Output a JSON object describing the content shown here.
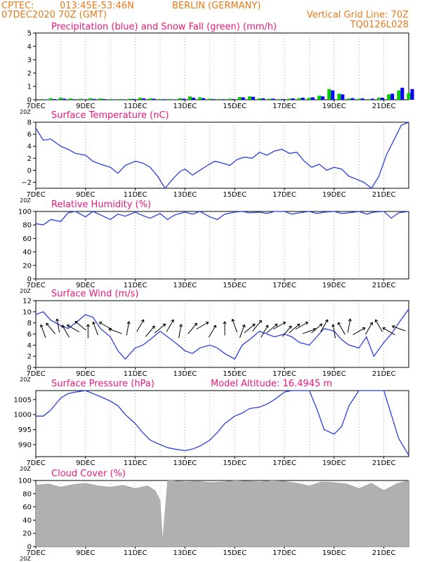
{
  "header": {
    "source": "CPTEC:",
    "coords": "013:45E-53:46N",
    "location": "BERLIN (GERMANY)",
    "run": "07DEC2020 70Z (GMT)",
    "grid_note": "Vertical Grid Line: 70Z",
    "code": "TQ0126L028",
    "hour_label": "20Z"
  },
  "x_dates": [
    "7DEC",
    "9DEC",
    "11DEC",
    "13DEC",
    "15DEC",
    "17DEC",
    "19DEC",
    "21DEC"
  ],
  "colors": {
    "precip": "#0000ff",
    "snow": "#00cc00",
    "line": "#2a3fe0",
    "cloud": "#b0b0b0",
    "header_orange": "#e8791a",
    "title_pink": "#e8197a"
  },
  "chart_data": [
    {
      "type": "bar",
      "title": "Precipitation (blue) and Snow Fall (green) (mm/h)",
      "ylim": [
        0,
        5
      ],
      "yticks": [
        "0",
        "1",
        "2",
        "3",
        "4",
        "5"
      ],
      "x_days": [
        7.3,
        7.6,
        8.0,
        8.4,
        8.8,
        9.2,
        9.6,
        10.0,
        10.4,
        10.8,
        11.2,
        11.6,
        12.0,
        12.4,
        12.8,
        13.2,
        13.6,
        14.0,
        14.4,
        14.8,
        15.2,
        15.6,
        16.0,
        16.4,
        16.8,
        17.2,
        17.6,
        18.0,
        18.4,
        18.8,
        19.2,
        19.6,
        20.0,
        20.4,
        20.8,
        21.2,
        21.6,
        22.0
      ],
      "series": [
        {
          "name": "Precipitation",
          "values": [
            0.02,
            0.05,
            0.08,
            0.04,
            0.03,
            0.06,
            0.05,
            0.02,
            0.03,
            0.05,
            0.1,
            0.08,
            0.04,
            0.03,
            0.08,
            0.15,
            0.12,
            0.05,
            0.04,
            0.05,
            0.18,
            0.22,
            0.1,
            0.08,
            0.05,
            0.1,
            0.15,
            0.18,
            0.25,
            0.7,
            0.4,
            0.12,
            0.1,
            0.08,
            0.15,
            0.45,
            0.9,
            0.8
          ]
        },
        {
          "name": "Snow Fall",
          "values": [
            0.05,
            0.12,
            0.15,
            0.1,
            0.08,
            0.12,
            0.1,
            0.05,
            0.05,
            0.08,
            0.15,
            0.1,
            0.05,
            0.05,
            0.12,
            0.25,
            0.18,
            0.08,
            0.05,
            0.08,
            0.2,
            0.25,
            0.1,
            0.08,
            0.05,
            0.08,
            0.12,
            0.15,
            0.3,
            0.8,
            0.45,
            0.1,
            0.08,
            0.05,
            0.15,
            0.4,
            0.7,
            0.5
          ]
        }
      ]
    },
    {
      "type": "line",
      "title": "Surface Temperature (nC)",
      "ylim": [
        -3,
        8
      ],
      "yticks": [
        "−2",
        "0",
        "2",
        "4",
        "6",
        "8"
      ],
      "x_days": [
        7.0,
        7.3,
        7.6,
        8.0,
        8.3,
        8.6,
        9.0,
        9.3,
        9.6,
        10.0,
        10.3,
        10.6,
        11.0,
        11.3,
        11.6,
        11.9,
        12.2,
        12.5,
        12.8,
        13.0,
        13.3,
        13.6,
        13.9,
        14.2,
        14.5,
        14.8,
        15.1,
        15.4,
        15.7,
        16.0,
        16.3,
        16.6,
        16.9,
        17.2,
        17.5,
        17.8,
        18.1,
        18.4,
        18.7,
        19.0,
        19.3,
        19.6,
        19.9,
        20.2,
        20.5,
        20.8,
        21.1,
        21.4,
        21.7,
        22.0
      ],
      "values": [
        7.0,
        5.0,
        5.2,
        4.0,
        3.5,
        2.8,
        2.5,
        1.5,
        1.0,
        0.5,
        -0.5,
        0.8,
        1.5,
        1.2,
        0.5,
        -1.0,
        -3.0,
        -1.5,
        -0.2,
        0.2,
        -0.8,
        0.0,
        0.8,
        1.5,
        1.2,
        0.8,
        1.8,
        2.2,
        2.0,
        3.0,
        2.5,
        3.2,
        3.5,
        2.8,
        3.0,
        1.5,
        0.5,
        1.0,
        0.0,
        0.5,
        0.2,
        -1.0,
        -1.5,
        -2.0,
        -3.0,
        -1.0,
        2.5,
        5.0,
        7.5,
        8.0
      ]
    },
    {
      "type": "line",
      "title": "Relative Humidity (%)",
      "ylim": [
        0,
        100
      ],
      "yticks": [
        "0",
        "20",
        "40",
        "60",
        "80",
        "100"
      ],
      "x_days": [
        7.0,
        7.3,
        7.6,
        8.0,
        8.3,
        8.6,
        9.0,
        9.3,
        9.6,
        10.0,
        10.3,
        10.6,
        11.0,
        11.3,
        11.6,
        12.0,
        12.3,
        12.6,
        13.0,
        13.3,
        13.6,
        14.0,
        14.3,
        14.6,
        15.0,
        15.3,
        15.6,
        16.0,
        16.3,
        16.6,
        17.0,
        17.3,
        17.6,
        18.0,
        18.3,
        18.6,
        19.0,
        19.3,
        19.6,
        20.0,
        20.3,
        20.6,
        21.0,
        21.3,
        21.6,
        22.0
      ],
      "values": [
        82,
        80,
        88,
        85,
        98,
        100,
        92,
        100,
        95,
        88,
        96,
        93,
        99,
        94,
        90,
        97,
        88,
        95,
        99,
        96,
        100,
        92,
        88,
        96,
        99,
        100,
        98,
        99,
        97,
        100,
        100,
        96,
        98,
        100,
        97,
        99,
        100,
        97,
        98,
        100,
        96,
        99,
        100,
        90,
        98,
        100
      ]
    },
    {
      "type": "line",
      "title": "Surface Wind (m/s)",
      "ylim": [
        0,
        12
      ],
      "yticks": [
        "0",
        "2",
        "4",
        "6",
        "8",
        "10",
        "12"
      ],
      "x_days": [
        7.0,
        7.3,
        7.6,
        8.0,
        8.3,
        8.6,
        9.0,
        9.3,
        9.6,
        10.0,
        10.3,
        10.6,
        11.0,
        11.3,
        11.6,
        12.0,
        12.3,
        12.6,
        13.0,
        13.3,
        13.6,
        14.0,
        14.3,
        14.6,
        15.0,
        15.3,
        15.6,
        16.0,
        16.3,
        16.6,
        17.0,
        17.3,
        17.6,
        18.0,
        18.3,
        18.6,
        19.0,
        19.3,
        19.6,
        20.0,
        20.3,
        20.6,
        21.0,
        21.3,
        21.6,
        22.0
      ],
      "values": [
        9.5,
        10.0,
        8.5,
        7.5,
        7.0,
        8.0,
        9.5,
        9.0,
        7.0,
        5.5,
        3.0,
        1.5,
        3.5,
        4.0,
        5.0,
        6.5,
        5.5,
        4.5,
        3.0,
        2.5,
        3.5,
        4.0,
        3.5,
        2.5,
        1.5,
        4.0,
        5.0,
        6.5,
        6.0,
        5.5,
        6.0,
        5.5,
        4.5,
        4.0,
        5.5,
        7.0,
        6.5,
        5.0,
        4.0,
        3.5,
        5.5,
        2.0,
        4.5,
        6.0,
        8.0,
        10.5
      ],
      "arrow_days": [
        7.3,
        7.6,
        7.9,
        8.2,
        8.5,
        8.8,
        9.1,
        9.4,
        9.8,
        10.2,
        10.7,
        11.2,
        11.6,
        12.0,
        12.4,
        12.8,
        13.3,
        13.7,
        14.1,
        14.6,
        15.0,
        15.3,
        15.6,
        15.9,
        16.2,
        16.5,
        16.8,
        17.1,
        17.4,
        17.7,
        18.0,
        18.3,
        18.6,
        19.0,
        19.3,
        19.6,
        20.0,
        20.4,
        20.8,
        21.2,
        21.6
      ],
      "arrow_dirs_deg": [
        110,
        130,
        100,
        120,
        150,
        140,
        90,
        110,
        150,
        160,
        80,
        60,
        50,
        40,
        60,
        80,
        50,
        30,
        60,
        90,
        110,
        70,
        40,
        50,
        60,
        40,
        30,
        50,
        40,
        30,
        20,
        40,
        60,
        100,
        120,
        80,
        30,
        60,
        120,
        150,
        160
      ]
    },
    {
      "type": "line",
      "title": "Surface Pressure (hPa)",
      "subtitle": "Model Altitude: 16.4945 m",
      "ylim": [
        986,
        1008
      ],
      "yticks": [
        "990",
        "995",
        "1000",
        "1005"
      ],
      "x_days": [
        7.0,
        7.3,
        7.6,
        8.0,
        8.3,
        8.6,
        9.0,
        9.3,
        9.6,
        10.0,
        10.3,
        10.6,
        11.0,
        11.3,
        11.6,
        12.0,
        12.3,
        12.6,
        13.0,
        13.3,
        13.6,
        14.0,
        14.3,
        14.6,
        15.0,
        15.3,
        15.6,
        16.0,
        16.3,
        16.6,
        17.0,
        17.3,
        17.6,
        18.0,
        18.3,
        18.6,
        19.0,
        19.3,
        19.6,
        20.0,
        20.3,
        20.6,
        21.0,
        21.3,
        21.6,
        22.0
      ],
      "values": [
        999.5,
        999.5,
        1001.5,
        1005.5,
        1007,
        1007.5,
        1008,
        1007,
        1006,
        1004.5,
        1003,
        1000,
        997,
        994,
        991.5,
        990,
        989,
        988.5,
        988,
        988.5,
        989.5,
        991.5,
        994,
        997,
        999.5,
        1000.5,
        1002,
        1002.5,
        1003.5,
        1005,
        1007.5,
        1010,
        1013,
        1010,
        1002,
        995,
        993.5,
        996,
        1003,
        1010,
        1015,
        1012,
        1008,
        1000,
        992,
        986.5
      ]
    },
    {
      "type": "area",
      "title": "Cloud Cover (%)",
      "ylim": [
        0,
        100
      ],
      "yticks": [
        "0",
        "20",
        "40",
        "60",
        "80",
        "100"
      ],
      "x_days": [
        7.0,
        7.5,
        8.0,
        8.5,
        9.0,
        9.5,
        10.0,
        10.5,
        11.0,
        11.5,
        11.8,
        12.0,
        12.1,
        12.3,
        12.5,
        13.0,
        13.5,
        14.0,
        14.5,
        15.0,
        15.5,
        16.0,
        16.5,
        17.0,
        17.5,
        18.0,
        18.5,
        19.0,
        19.5,
        20.0,
        20.5,
        21.0,
        21.5,
        22.0
      ],
      "values": [
        93,
        95,
        90,
        94,
        96,
        92,
        90,
        93,
        88,
        92,
        85,
        70,
        8,
        100,
        100,
        98,
        99,
        97,
        98,
        100,
        99,
        98,
        100,
        99,
        96,
        92,
        98,
        97,
        95,
        88,
        96,
        85,
        95,
        100
      ]
    }
  ]
}
